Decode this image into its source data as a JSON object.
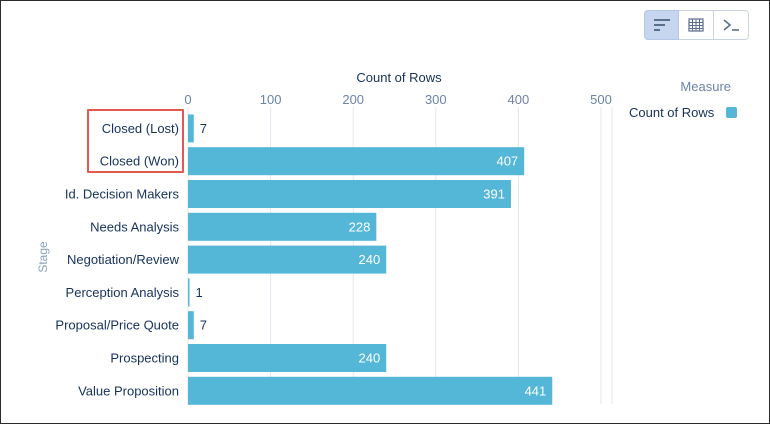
{
  "toolbar": {
    "buttons": [
      {
        "icon": "bar-chart-icon",
        "active": true
      },
      {
        "icon": "table-grid-icon",
        "active": false
      },
      {
        "icon": "terminal-icon",
        "active": false
      }
    ]
  },
  "legend": {
    "title": "Measure",
    "items": [
      {
        "label": "Count of Rows",
        "color": "#54b7d8"
      }
    ]
  },
  "chart_data": {
    "type": "bar",
    "orientation": "horizontal",
    "xlabel": "Count of Rows",
    "ylabel": "Stage",
    "xlim": [
      0,
      500
    ],
    "xticks": [
      0,
      100,
      200,
      300,
      400,
      500
    ],
    "categories": [
      "Closed (Lost)",
      "Closed (Won)",
      "Id. Decision Makers",
      "Needs Analysis",
      "Negotiation/Review",
      "Perception Analysis",
      "Proposal/Price Quote",
      "Prospecting",
      "Value Proposition"
    ],
    "series": [
      {
        "name": "Count of Rows",
        "values": [
          7,
          407,
          391,
          228,
          240,
          1,
          7,
          240,
          441
        ]
      }
    ],
    "bar_color": "#54b7d8",
    "grid": true,
    "legend_position": "right",
    "highlighted_categories": [
      "Closed (Lost)",
      "Closed (Won)"
    ]
  }
}
